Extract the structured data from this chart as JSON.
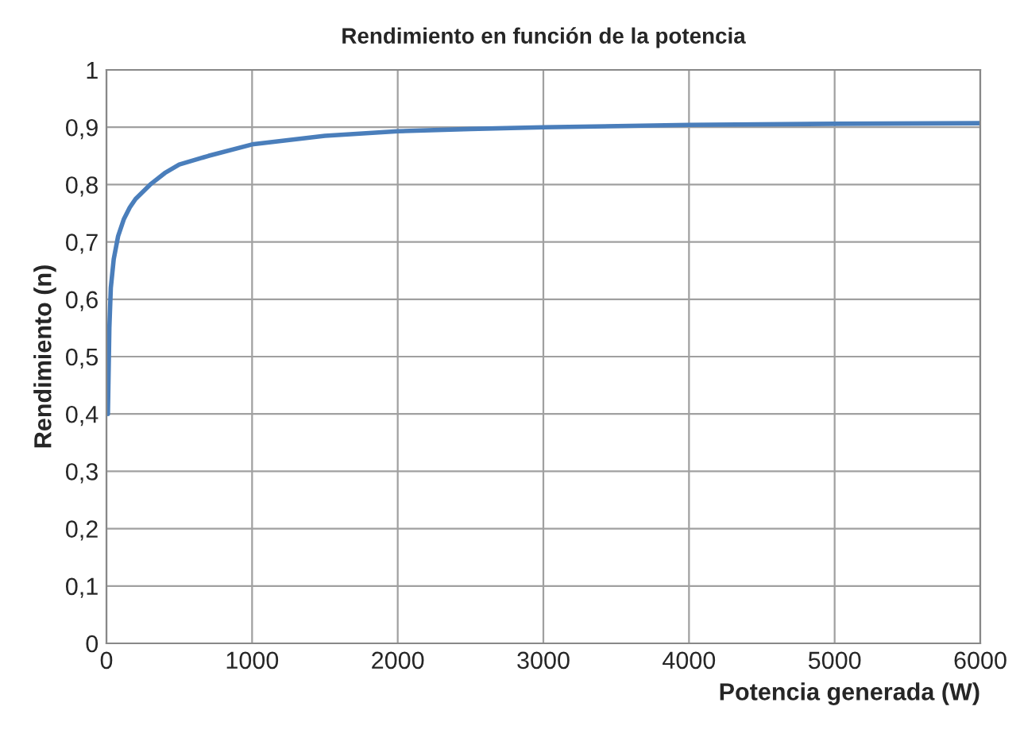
{
  "chart_data": {
    "type": "line",
    "title": "Rendimiento en función de la potencia",
    "xlabel": "Potencia generada (W)",
    "ylabel": "Rendimiento (n)",
    "series": [
      {
        "color": "#4a7ebb",
        "x": [
          10,
          20,
          30,
          50,
          80,
          120,
          160,
          200,
          300,
          400,
          500,
          700,
          1000,
          1500,
          2000,
          2500,
          3000,
          4000,
          5000,
          6000
        ],
        "values": [
          0.4,
          0.55,
          0.62,
          0.67,
          0.71,
          0.74,
          0.76,
          0.775,
          0.8,
          0.82,
          0.835,
          0.85,
          0.87,
          0.885,
          0.893,
          0.897,
          0.9,
          0.904,
          0.906,
          0.907
        ]
      }
    ],
    "xlim": [
      0,
      6000
    ],
    "xticks": [
      0,
      1000,
      2000,
      3000,
      4000,
      5000,
      6000
    ],
    "ylim": [
      0,
      1
    ],
    "yticks": [
      0,
      {
        "value": 0.1,
        "label": "0,1"
      },
      {
        "value": 0.2,
        "label": "0,2"
      },
      {
        "value": 0.3,
        "label": "0,3"
      },
      {
        "value": 0.4,
        "label": "0,4"
      },
      {
        "value": 0.5,
        "label": "0,5"
      },
      {
        "value": 0.6,
        "label": "0,6"
      },
      {
        "value": 0.7,
        "label": "0,7"
      },
      {
        "value": 0.8,
        "label": "0,8"
      },
      {
        "value": 0.9,
        "label": "0,9"
      },
      1
    ],
    "grid": true,
    "marker": "none",
    "line_style": "solid"
  }
}
